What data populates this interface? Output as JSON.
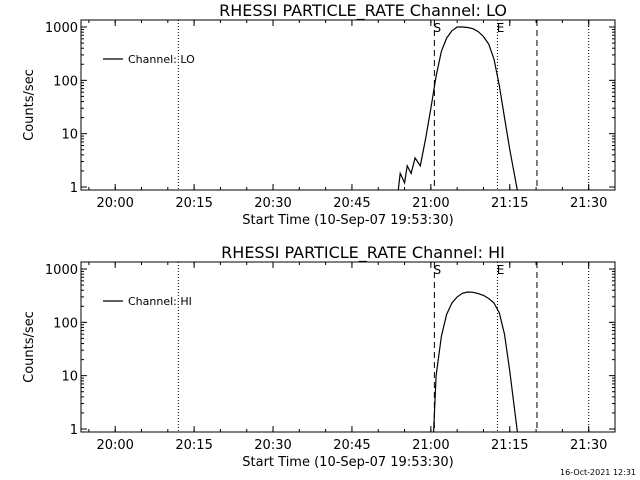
{
  "chart_data": [
    {
      "type": "line",
      "title": "RHESSI PARTICLE_RATE Channel: LO",
      "xlabel": "Start Time (10-Sep-07 19:53:30)",
      "ylabel": "Counts/sec",
      "yscale": "log",
      "ylim": [
        1,
        1000
      ],
      "xlim": [
        "19:53:30",
        "21:35:00"
      ],
      "xticks": [
        "20:00",
        "20:15",
        "20:30",
        "20:45",
        "21:00",
        "21:15",
        "21:30"
      ],
      "yticks": [
        "1",
        "10",
        "100",
        "1000"
      ],
      "legend": "top-left",
      "series": [
        {
          "name": "Channel: LO",
          "x": [
            "20:53:45",
            "20:54:10",
            "20:55:00",
            "20:55:30",
            "20:56:15",
            "20:57:00",
            "20:58:00",
            "20:59:00",
            "21:00:00",
            "21:01:00",
            "21:02:00",
            "21:03:00",
            "21:04:00",
            "21:05:00",
            "21:06:00",
            "21:07:00",
            "21:08:00",
            "21:09:00",
            "21:10:00",
            "21:11:00",
            "21:12:00",
            "21:13:00",
            "21:14:00",
            "21:15:00",
            "21:16:00",
            "21:16:30"
          ],
          "y": [
            0.8,
            1.8,
            1.2,
            2.5,
            1.8,
            3.5,
            2.5,
            8,
            30,
            120,
            350,
            620,
            850,
            1000,
            1000,
            980,
            930,
            820,
            660,
            480,
            250,
            80,
            20,
            5,
            1.5,
            0.8
          ]
        }
      ],
      "vlines": [
        {
          "x": "20:12:00",
          "style": "dotted"
        },
        {
          "x": "21:00:40",
          "style": "dashed",
          "label": "S"
        },
        {
          "x": "21:12:40",
          "style": "dotted",
          "label": "E"
        },
        {
          "x": "21:20:10",
          "style": "dashed"
        },
        {
          "x": "21:30:00",
          "style": "dotted"
        }
      ]
    },
    {
      "type": "line",
      "title": "RHESSI PARTICLE_RATE Channel: HI",
      "xlabel": "Start Time (10-Sep-07 19:53:30)",
      "ylabel": "Counts/sec",
      "yscale": "log",
      "ylim": [
        1,
        1000
      ],
      "xlim": [
        "19:53:30",
        "21:35:00"
      ],
      "xticks": [
        "20:00",
        "20:15",
        "20:30",
        "20:45",
        "21:00",
        "21:15",
        "21:30"
      ],
      "yticks": [
        "1",
        "10",
        "100",
        "1000"
      ],
      "legend": "top-left",
      "series": [
        {
          "name": "Channel: HI",
          "x": [
            "21:00:30",
            "21:01:00",
            "21:02:00",
            "21:03:00",
            "21:04:00",
            "21:05:00",
            "21:06:00",
            "21:07:00",
            "21:08:00",
            "21:09:00",
            "21:10:00",
            "21:11:00",
            "21:12:00",
            "21:13:00",
            "21:14:00",
            "21:15:00",
            "21:16:00",
            "21:16:30"
          ],
          "y": [
            0.8,
            10,
            55,
            140,
            230,
            300,
            350,
            370,
            365,
            345,
            320,
            280,
            230,
            150,
            60,
            12,
            2,
            0.8
          ]
        }
      ],
      "vlines": [
        {
          "x": "20:12:00",
          "style": "dotted"
        },
        {
          "x": "21:00:40",
          "style": "dashed",
          "label": "S"
        },
        {
          "x": "21:12:40",
          "style": "dotted",
          "label": "E"
        },
        {
          "x": "21:20:10",
          "style": "dashed"
        },
        {
          "x": "21:30:00",
          "style": "dotted"
        }
      ]
    }
  ],
  "footer": {
    "timestamp": "16-Oct-2021 12:31"
  }
}
